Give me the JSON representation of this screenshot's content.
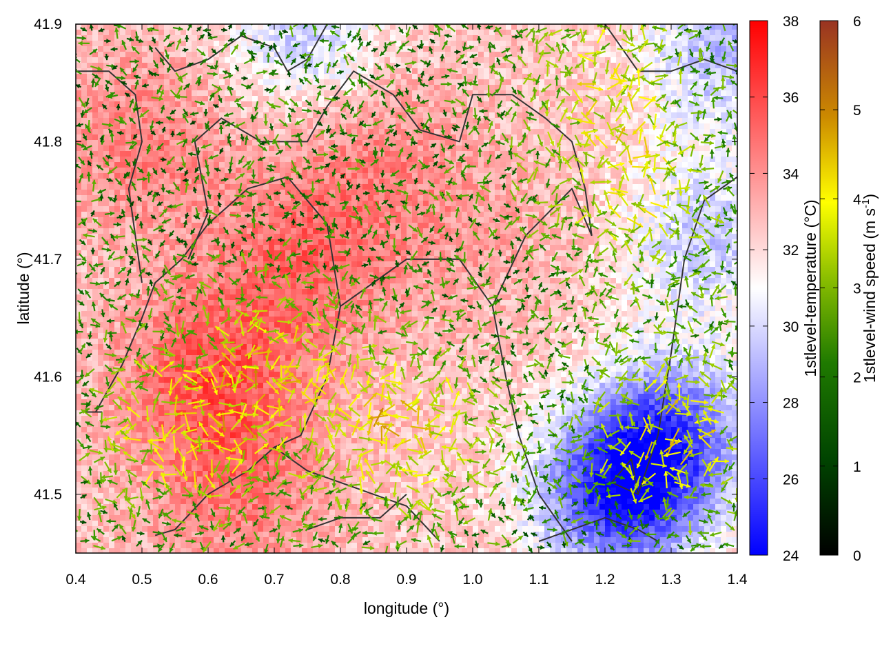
{
  "chart_data": {
    "type": "heatmap",
    "overlays": [
      "wind-vector arrows colored by speed",
      "boundary contour lines"
    ],
    "xlabel": "longitude (°)",
    "ylabel": "latitude (°)",
    "xlim": [
      0.4,
      1.4
    ],
    "ylim": [
      41.45,
      41.9
    ],
    "x_ticks": [
      0.4,
      0.5,
      0.6,
      0.7,
      0.8,
      0.9,
      1.0,
      1.1,
      1.2,
      1.3,
      1.4
    ],
    "x_tick_labels": [
      "0.4",
      "0.5",
      "0.6",
      "0.7",
      "0.8",
      "0.9",
      "1.0",
      "1.1",
      "1.2",
      "1.3",
      "1.4"
    ],
    "y_ticks": [
      41.5,
      41.6,
      41.7,
      41.8,
      41.9
    ],
    "y_tick_labels": [
      "41.5",
      "41.6",
      "41.7",
      "41.8",
      "41.9"
    ],
    "grid": false,
    "temperature_colorbar": {
      "label": "1stlevel-temperature (°C)",
      "range": [
        24,
        38
      ],
      "ticks": [
        24,
        26,
        28,
        30,
        32,
        34,
        36,
        38
      ],
      "tick_labels": [
        "24",
        "26",
        "28",
        "30",
        "32",
        "34",
        "36",
        "38"
      ],
      "colors": [
        "#0000ff",
        "#ffffff",
        "#ff0000"
      ]
    },
    "wind_colorbar": {
      "label_main": "1stlevel-wind speed (m s",
      "label_sup": "-1",
      "label_end": ")",
      "range": [
        0,
        6
      ],
      "ticks": [
        0,
        1,
        2,
        3,
        4,
        5,
        6
      ],
      "tick_labels": [
        "0",
        "1",
        "2",
        "3",
        "4",
        "5",
        "6"
      ],
      "colors": [
        "#000000",
        "#005500",
        "#339900",
        "#99cc00",
        "#ffff00",
        "#cc8800",
        "#993322"
      ]
    },
    "temperature_field": {
      "description_source": "approximate reading of the colored field",
      "hotspots": [
        {
          "lon": 0.6,
          "lat": 41.6,
          "temp": 35.5
        },
        {
          "lon": 0.75,
          "lat": 41.7,
          "temp": 35
        },
        {
          "lon": 0.5,
          "lat": 41.8,
          "temp": 34.5
        },
        {
          "lon": 0.85,
          "lat": 41.8,
          "temp": 34
        },
        {
          "lon": 0.65,
          "lat": 41.5,
          "temp": 34.5
        },
        {
          "lon": 1.0,
          "lat": 41.72,
          "temp": 33.5
        }
      ],
      "coldspots": [
        {
          "lon": 1.22,
          "lat": 41.5,
          "temp": 25.5
        },
        {
          "lon": 1.3,
          "lat": 41.55,
          "temp": 27
        },
        {
          "lon": 1.35,
          "lat": 41.72,
          "temp": 29.5
        },
        {
          "lon": 0.75,
          "lat": 41.89,
          "temp": 29.5
        },
        {
          "lon": 1.38,
          "lat": 41.88,
          "temp": 29
        }
      ],
      "background_temp": 32.5
    },
    "wind_field": {
      "description_source": "approximate reading of arrow colors",
      "strong_zones": [
        {
          "lon": 0.7,
          "lat": 41.6,
          "speed": 3.8
        },
        {
          "lon": 0.9,
          "lat": 41.55,
          "speed": 4.2
        },
        {
          "lon": 1.3,
          "lat": 41.55,
          "speed": 4.0
        },
        {
          "lon": 0.55,
          "lat": 41.55,
          "speed": 3.6
        },
        {
          "lon": 1.25,
          "lat": 41.75,
          "speed": 3.5
        },
        {
          "lon": 1.2,
          "lat": 41.85,
          "speed": 3.4
        }
      ],
      "background_speed": 1.6
    },
    "contour_lines": [
      [
        [
          0.43,
          41.57
        ],
        [
          0.47,
          41.61
        ],
        [
          0.5,
          41.65
        ],
        [
          0.52,
          41.68
        ],
        [
          0.56,
          41.7
        ],
        [
          0.6,
          41.73
        ],
        [
          0.66,
          41.76
        ],
        [
          0.72,
          41.77
        ],
        [
          0.78,
          41.73
        ],
        [
          0.8,
          41.66
        ],
        [
          0.78,
          41.6
        ],
        [
          0.74,
          41.55
        ],
        [
          0.7,
          41.54
        ],
        [
          0.66,
          41.52
        ],
        [
          0.6,
          41.5
        ],
        [
          0.55,
          41.47
        ],
        [
          0.52,
          41.465
        ]
      ],
      [
        [
          0.44,
          41.57
        ],
        [
          0.41,
          41.57
        ]
      ],
      [
        [
          0.5,
          41.68
        ],
        [
          0.49,
          41.72
        ],
        [
          0.48,
          41.76
        ],
        [
          0.5,
          41.8
        ],
        [
          0.49,
          41.84
        ],
        [
          0.45,
          41.86
        ],
        [
          0.4,
          41.86
        ]
      ],
      [
        [
          0.57,
          41.7
        ],
        [
          0.6,
          41.74
        ],
        [
          0.58,
          41.8
        ],
        [
          0.62,
          41.82
        ],
        [
          0.68,
          41.8
        ],
        [
          0.75,
          41.8
        ],
        [
          0.78,
          41.83
        ],
        [
          0.82,
          41.86
        ],
        [
          0.88,
          41.84
        ],
        [
          0.92,
          41.81
        ],
        [
          0.98,
          41.8
        ],
        [
          1.0,
          41.84
        ],
        [
          1.06,
          41.84
        ],
        [
          1.11,
          41.82
        ],
        [
          1.15,
          41.8
        ],
        [
          1.17,
          41.76
        ],
        [
          1.18,
          41.72
        ]
      ],
      [
        [
          0.8,
          41.66
        ],
        [
          0.85,
          41.68
        ],
        [
          0.9,
          41.7
        ],
        [
          0.98,
          41.7
        ],
        [
          1.03,
          41.66
        ],
        [
          1.05,
          41.6
        ],
        [
          1.07,
          41.55
        ],
        [
          1.1,
          41.5
        ],
        [
          1.15,
          41.46
        ]
      ],
      [
        [
          0.7,
          41.54
        ],
        [
          0.75,
          41.52
        ],
        [
          0.8,
          41.51
        ],
        [
          0.85,
          41.5
        ],
        [
          0.9,
          41.49
        ],
        [
          0.95,
          41.46
        ]
      ],
      [
        [
          0.75,
          41.47
        ],
        [
          0.8,
          41.48
        ],
        [
          0.86,
          41.48
        ],
        [
          0.9,
          41.5
        ]
      ],
      [
        [
          1.03,
          41.66
        ],
        [
          1.08,
          41.72
        ],
        [
          1.15,
          41.76
        ],
        [
          1.18,
          41.72
        ]
      ],
      [
        [
          1.1,
          41.46
        ],
        [
          1.15,
          41.47
        ],
        [
          1.2,
          41.48
        ],
        [
          1.25,
          41.47
        ],
        [
          1.28,
          41.46
        ]
      ],
      [
        [
          1.25,
          41.5
        ],
        [
          1.28,
          41.55
        ],
        [
          1.3,
          41.62
        ],
        [
          1.32,
          41.7
        ],
        [
          1.35,
          41.75
        ],
        [
          1.4,
          41.77
        ]
      ],
      [
        [
          0.52,
          41.88
        ],
        [
          0.55,
          41.86
        ],
        [
          0.6,
          41.87
        ],
        [
          0.65,
          41.89
        ],
        [
          0.7,
          41.88
        ],
        [
          0.72,
          41.86
        ],
        [
          0.75,
          41.87
        ],
        [
          0.78,
          41.9
        ]
      ],
      [
        [
          1.2,
          41.9
        ],
        [
          1.25,
          41.86
        ],
        [
          1.3,
          41.86
        ],
        [
          1.35,
          41.87
        ],
        [
          1.4,
          41.86
        ]
      ],
      [
        [
          1.21,
          41.51
        ],
        [
          1.24,
          41.53
        ],
        [
          1.25,
          41.5
        ],
        [
          1.21,
          41.51
        ]
      ]
    ]
  }
}
